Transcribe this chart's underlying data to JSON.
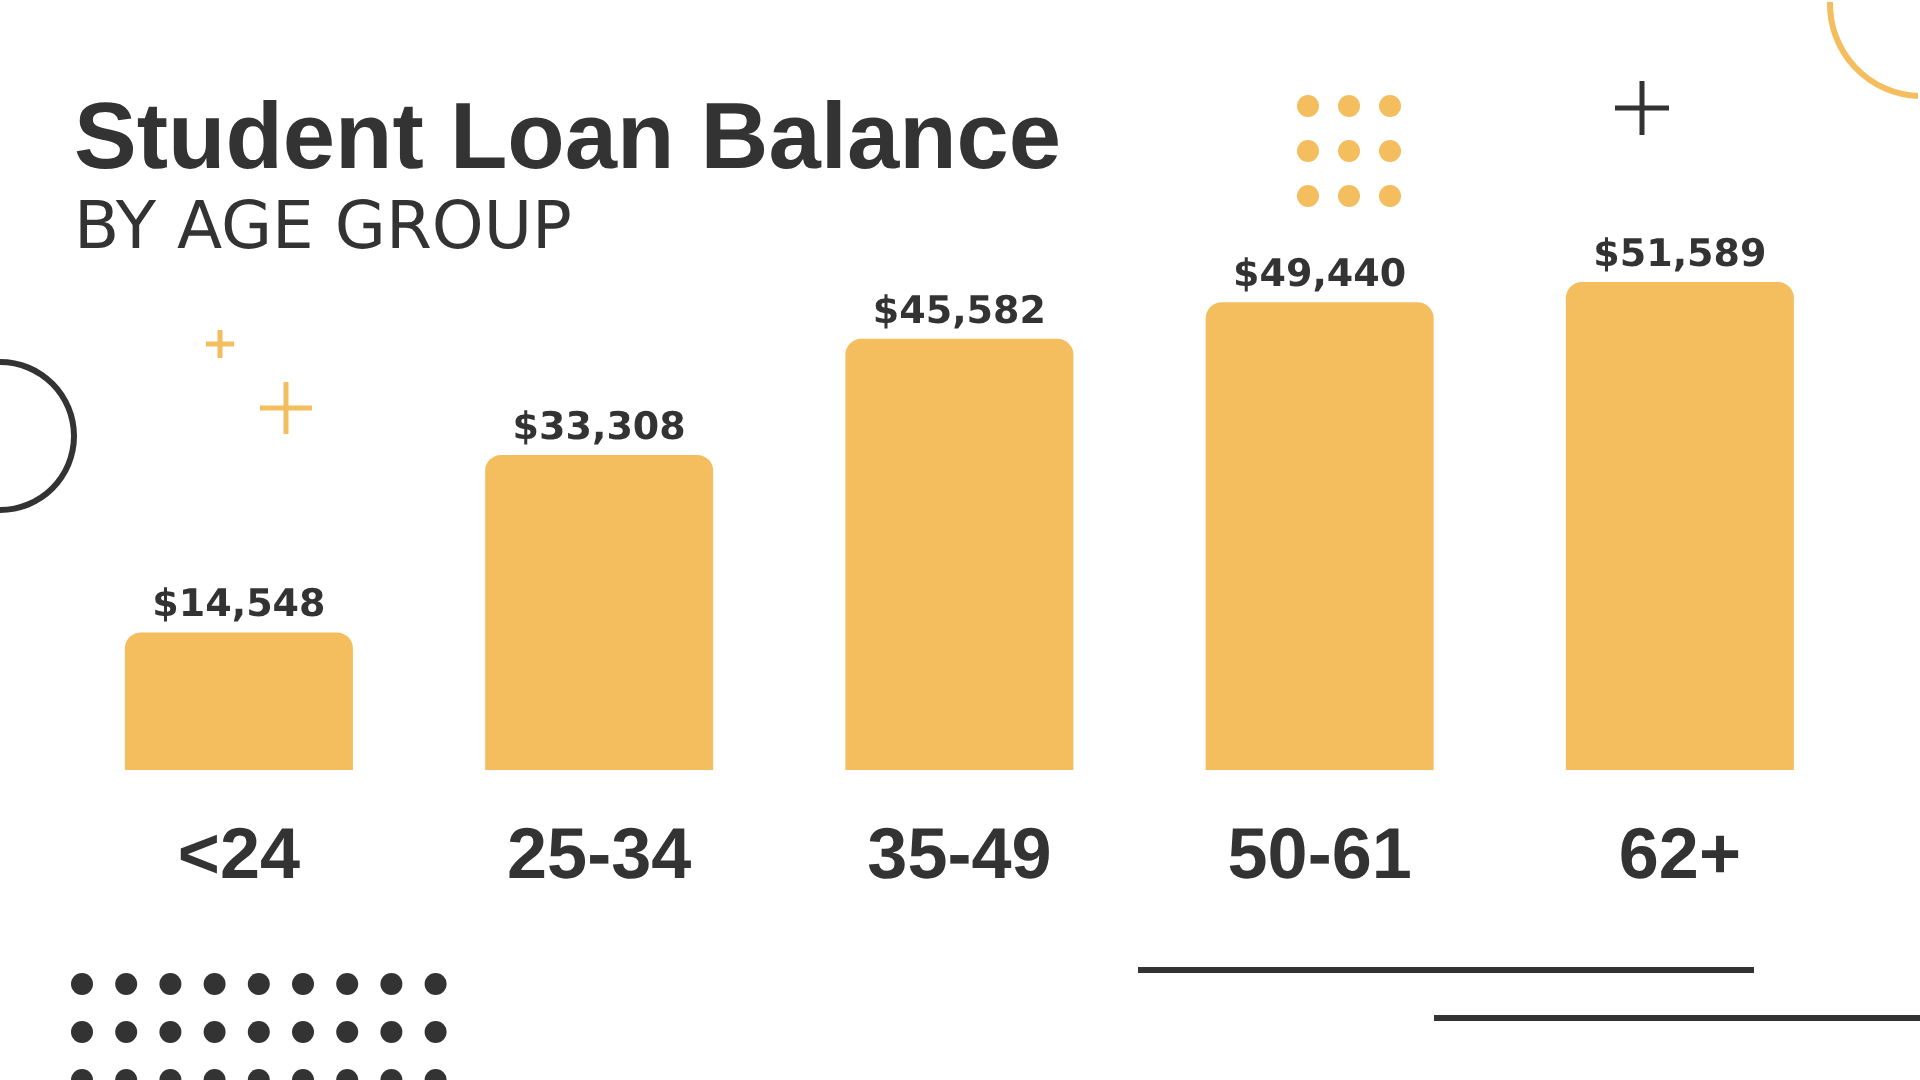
{
  "chart_data": {
    "type": "bar",
    "title": "Student Loan Balance",
    "subtitle": "BY AGE GROUP",
    "categories": [
      "<24",
      "25-34",
      "35-49",
      "50-61",
      "62+"
    ],
    "values": [
      14548,
      33308,
      45582,
      49440,
      51589
    ],
    "value_labels": [
      "$14,548",
      "$33,308",
      "$45,582",
      "$49,440",
      "$51,589"
    ],
    "color": "#f4be5e",
    "tick_labels": "x"
  }
}
